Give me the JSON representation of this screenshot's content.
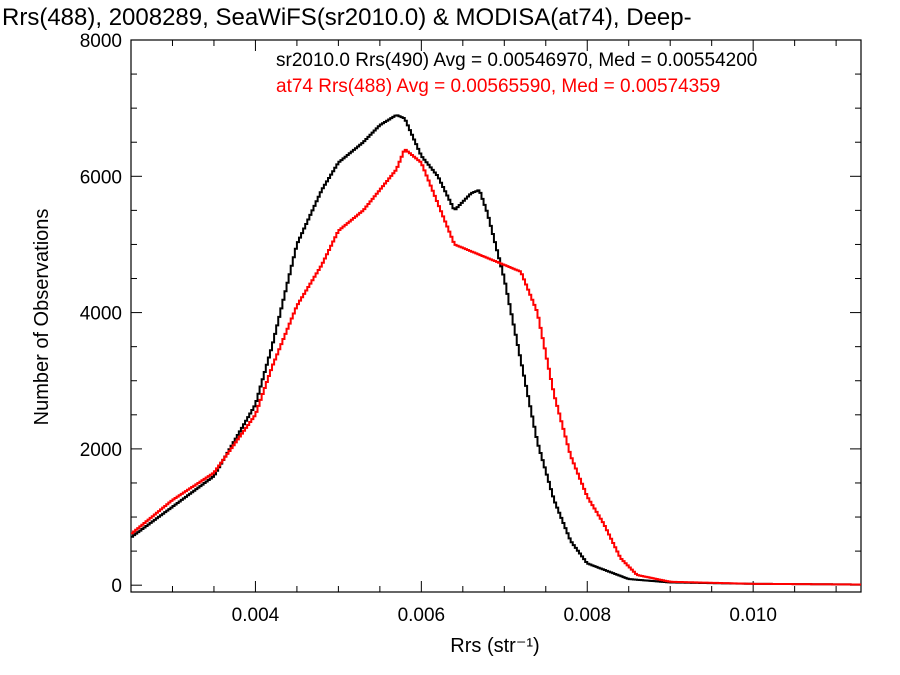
{
  "chart_data": {
    "type": "line",
    "title": "Rrs(488), 2008289, SeaWiFS(sr2010.0) & MODISA(at74), Deep-",
    "xlabel": "Rrs (str⁻¹)",
    "ylabel": "Number of Observations",
    "xlim": [
      0.0025,
      0.0113
    ],
    "ylim": [
      -100,
      8000
    ],
    "xticks": [
      0.004,
      0.006,
      0.008,
      0.01
    ],
    "xtick_labels": [
      "0.004",
      "0.006",
      "0.008",
      "0.010"
    ],
    "yticks": [
      0,
      2000,
      4000,
      6000,
      8000
    ],
    "ytick_labels": [
      "0",
      "2000",
      "4000",
      "6000",
      "8000"
    ],
    "grid": false,
    "legend_position": "top-right",
    "series": [
      {
        "name": "sr2010.0 Rrs(490)",
        "legend_text": "sr2010.0 Rrs(490) Avg = 0.00546970, Med = 0.00554200",
        "color": "#000000",
        "x": [
          0.0025,
          0.003,
          0.0035,
          0.004,
          0.0042,
          0.0045,
          0.0048,
          0.005,
          0.0053,
          0.0055,
          0.0057,
          0.0058,
          0.006,
          0.0062,
          0.0064,
          0.0066,
          0.0067,
          0.0068,
          0.007,
          0.0072,
          0.0074,
          0.0076,
          0.0078,
          0.008,
          0.0085,
          0.009,
          0.01,
          0.0113
        ],
        "y": [
          700,
          1150,
          1600,
          2650,
          3500,
          5000,
          5800,
          6200,
          6500,
          6750,
          6900,
          6850,
          6300,
          6000,
          5500,
          5750,
          5800,
          5450,
          4500,
          3300,
          2100,
          1250,
          650,
          320,
          90,
          40,
          20,
          10
        ]
      },
      {
        "name": "at74 Rrs(488)",
        "legend_text": "at74 Rrs(488) Avg = 0.00565590, Med = 0.00574359",
        "color": "#ff0000",
        "x": [
          0.0025,
          0.003,
          0.0035,
          0.004,
          0.0042,
          0.0045,
          0.0048,
          0.005,
          0.0053,
          0.0055,
          0.0057,
          0.0058,
          0.006,
          0.0062,
          0.0064,
          0.0066,
          0.0068,
          0.007,
          0.0072,
          0.0074,
          0.0076,
          0.0078,
          0.008,
          0.0082,
          0.0084,
          0.0086,
          0.009,
          0.01,
          0.0113
        ],
        "y": [
          750,
          1250,
          1650,
          2500,
          3200,
          4100,
          4700,
          5200,
          5500,
          5800,
          6100,
          6400,
          6200,
          5600,
          5000,
          4900,
          4800,
          4700,
          4600,
          4000,
          2800,
          1900,
          1300,
          900,
          400,
          150,
          50,
          20,
          10
        ]
      }
    ]
  }
}
